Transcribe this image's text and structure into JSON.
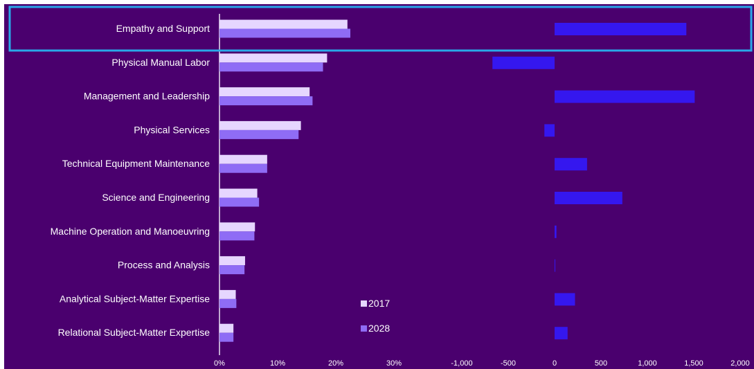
{
  "colors": {
    "background": "#4a006e",
    "bar_2017": "#e6d6ff",
    "bar_2028": "#8f6cf5",
    "bar_change": "#3517ef",
    "highlight": "#29a9e8",
    "axis": "#e9e2f3",
    "text": "#ffffff"
  },
  "chart_data": [
    {
      "type": "bar",
      "orientation": "horizontal",
      "categories": [
        "Empathy and Support",
        "Physical Manual Labor",
        "Management and Leadership",
        "Physical Services",
        "Technical Equipment Maintenance",
        "Science and Engineering",
        "Machine Operation and Manoeuvring",
        "Process and Analysis",
        "Analytical Subject-Matter Expertise",
        "Relational Subject-Matter Expertise"
      ],
      "series": [
        {
          "name": "2017",
          "values": [
            22.0,
            18.5,
            15.5,
            14.0,
            8.2,
            6.5,
            6.1,
            4.4,
            2.8,
            2.4
          ]
        },
        {
          "name": "2028",
          "values": [
            22.5,
            17.8,
            16.0,
            13.6,
            8.2,
            6.8,
            6.0,
            4.3,
            2.9,
            2.4
          ]
        }
      ],
      "xlim": [
        0,
        30
      ],
      "xticks": [
        "0%",
        "10%",
        "20%",
        "30%"
      ],
      "highlighted_category": "Empathy and Support",
      "legend_position": "bottom-right"
    },
    {
      "type": "bar",
      "orientation": "horizontal",
      "categories": [
        "Empathy and Support",
        "Physical Manual Labor",
        "Management and Leadership",
        "Physical Services",
        "Technical Equipment Maintenance",
        "Science and Engineering",
        "Machine Operation and Manoeuvring",
        "Process and Analysis",
        "Analytical Subject-Matter Expertise",
        "Relational Subject-Matter Expertise"
      ],
      "values": [
        1420,
        -670,
        1510,
        -110,
        350,
        730,
        20,
        5,
        220,
        140
      ],
      "xlim": [
        -1000,
        2000
      ],
      "xticks": [
        "-1,000",
        "-500",
        "0",
        "500",
        "1,000",
        "1,500",
        "2,000"
      ]
    }
  ]
}
